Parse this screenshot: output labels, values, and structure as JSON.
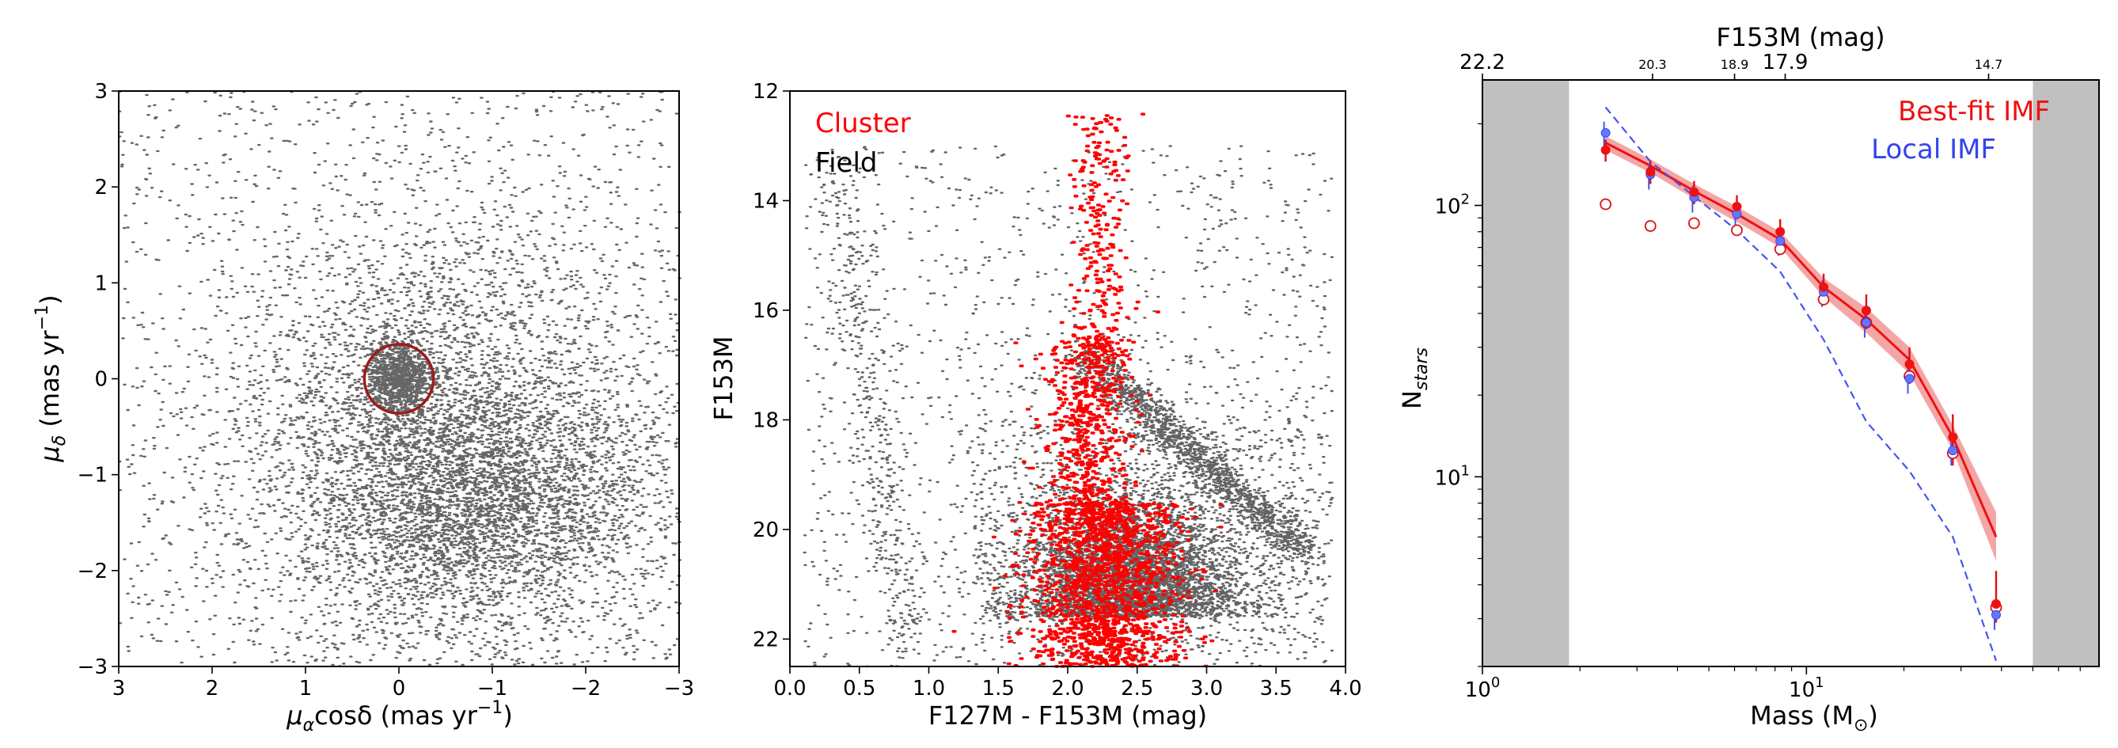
{
  "chart_data": [
    {
      "type": "scatter",
      "panel": "proper-motion",
      "xlabel_main": "μ",
      "xlabel_sub": "α",
      "xlabel_rest": "cosδ (mas yr",
      "xlabel_exp": "−1",
      "xlabel_close": ")",
      "ylabel_main": "μ",
      "ylabel_sub": "δ",
      "ylabel_rest": " (mas yr",
      "ylabel_exp": "−1",
      "ylabel_close": ")",
      "xlim": [
        3,
        -3
      ],
      "ylim": [
        -3,
        3
      ],
      "x_ticks": [
        {
          "value": 3,
          "label": "3"
        },
        {
          "value": 2,
          "label": "2"
        },
        {
          "value": 1,
          "label": "1"
        },
        {
          "value": 0,
          "label": "0"
        },
        {
          "value": -1,
          "label": "−1"
        },
        {
          "value": -2,
          "label": "−2"
        },
        {
          "value": -3,
          "label": "−3"
        }
      ],
      "y_ticks": [
        {
          "value": -3,
          "label": "−3"
        },
        {
          "value": -2,
          "label": "−2"
        },
        {
          "value": -1,
          "label": "−1"
        },
        {
          "value": 0,
          "label": "0"
        },
        {
          "value": 1,
          "label": "1"
        },
        {
          "value": 2,
          "label": "2"
        },
        {
          "value": 3,
          "label": "3"
        }
      ],
      "points_color": "#333333",
      "selection_circle": {
        "center": [
          0,
          0
        ],
        "radius": 0.37,
        "color": "#9b1c1c"
      }
    },
    {
      "type": "scatter",
      "panel": "color-magnitude",
      "xlabel": "F127M - F153M (mag)",
      "ylabel": "F153M",
      "xlim": [
        0.0,
        4.0
      ],
      "ylim": [
        22.5,
        12
      ],
      "x_ticks": [
        {
          "value": 0.0,
          "label": "0.0"
        },
        {
          "value": 0.5,
          "label": "0.5"
        },
        {
          "value": 1.0,
          "label": "1.0"
        },
        {
          "value": 1.5,
          "label": "1.5"
        },
        {
          "value": 2.0,
          "label": "2.0"
        },
        {
          "value": 2.5,
          "label": "2.5"
        },
        {
          "value": 3.0,
          "label": "3.0"
        },
        {
          "value": 3.5,
          "label": "3.5"
        },
        {
          "value": 4.0,
          "label": "4.0"
        }
      ],
      "y_ticks": [
        {
          "value": 12,
          "label": "12"
        },
        {
          "value": 14,
          "label": "14"
        },
        {
          "value": 16,
          "label": "16"
        },
        {
          "value": 18,
          "label": "18"
        },
        {
          "value": 20,
          "label": "20"
        },
        {
          "value": 22,
          "label": "22"
        }
      ],
      "legend": [
        {
          "name": "Cluster",
          "color": "#ff0000"
        },
        {
          "name": "Field",
          "color": "#000000"
        }
      ]
    },
    {
      "type": "line",
      "panel": "mass-function",
      "xlabel": "Mass (M",
      "xlabel_sub": "⊙",
      "xlabel_close": ")",
      "ylabel_main": "N",
      "ylabel_sub": "stars",
      "top_label": "F153M (mag)",
      "x_scale": "log",
      "y_scale": "log",
      "xlim": [
        1.0,
        80
      ],
      "ylim": [
        2,
        290
      ],
      "x_ticks": [
        {
          "value": 1,
          "base": "10",
          "exp": "0"
        },
        {
          "value": 10,
          "base": "10",
          "exp": "1"
        }
      ],
      "y_ticks": [
        {
          "value": 10,
          "base": "10",
          "exp": "1"
        },
        {
          "value": 100,
          "base": "10",
          "exp": "2"
        }
      ],
      "top_ticks": [
        {
          "mass": 1.0,
          "label": "22.2",
          "size": "large"
        },
        {
          "mass": 3.35,
          "label": "20.3",
          "size": "small"
        },
        {
          "mass": 6.0,
          "label": "18.9",
          "size": "small"
        },
        {
          "mass": 8.6,
          "label": "17.9",
          "size": "large"
        },
        {
          "mass": 36.5,
          "label": "14.7",
          "size": "small"
        }
      ],
      "excluded_regions": [
        [
          1.0,
          1.85
        ],
        [
          50,
          80
        ]
      ],
      "excluded_color": "#c0c0c0",
      "legend": [
        {
          "name": "Best-fit IMF",
          "color": "#ee1111"
        },
        {
          "name": "Local IMF",
          "color": "#3344ee"
        }
      ],
      "best_fit": {
        "x": [
          2.4,
          3.3,
          4.5,
          6.1,
          8.3,
          11.3,
          15.3,
          20.8,
          28.3,
          38.5
        ],
        "y": [
          170,
          140,
          113,
          93,
          75,
          50,
          38,
          27,
          14,
          6
        ]
      },
      "best_fit_band": {
        "x": [
          2.4,
          3.3,
          4.5,
          6.1,
          8.3,
          11.3,
          15.3,
          20.8,
          28.3,
          38.5
        ],
        "lower": [
          160,
          132,
          106,
          87,
          70,
          46,
          34,
          24,
          12.5,
          4.9
        ],
        "upper": [
          180,
          148,
          120,
          99,
          80,
          54,
          42,
          30,
          15.5,
          7.4
        ]
      },
      "local_imf": {
        "x": [
          2.4,
          3.3,
          4.5,
          6.1,
          8.3,
          11.3,
          15.3,
          20.8,
          28.3,
          38.5
        ],
        "y": [
          230,
          145,
          108,
          81,
          57,
          32,
          16,
          10.5,
          6,
          2.1
        ]
      },
      "observed": {
        "x": [
          2.4,
          3.3,
          4.5,
          6.1,
          8.3,
          11.3,
          15.3,
          20.8,
          28.3,
          38.5
        ],
        "y": [
          160,
          133,
          112,
          99,
          80,
          50,
          41,
          26,
          14,
          3.4
        ],
        "err_low": [
          145,
          120,
          101,
          89,
          71,
          44,
          35,
          22,
          11,
          2.9
        ],
        "err_high": [
          175,
          146,
          123,
          109,
          89,
          56,
          47,
          30,
          17,
          4.5
        ]
      },
      "observed_local": {
        "x": [
          2.4,
          3.3,
          4.5,
          6.1,
          8.3,
          11.3,
          15.3,
          20.8,
          28.3,
          38.5
        ],
        "y": [
          185,
          130,
          107,
          93,
          74,
          48,
          37,
          23,
          12.5,
          3.1
        ]
      },
      "uncorrected": {
        "x": [
          2.4,
          3.3,
          4.5,
          6.1,
          8.3,
          11.3,
          15.3,
          20.8,
          28.3,
          38.5
        ],
        "y": [
          101,
          84,
          86,
          81,
          69,
          45,
          37,
          23.5,
          12.2,
          3.3
        ]
      }
    }
  ]
}
